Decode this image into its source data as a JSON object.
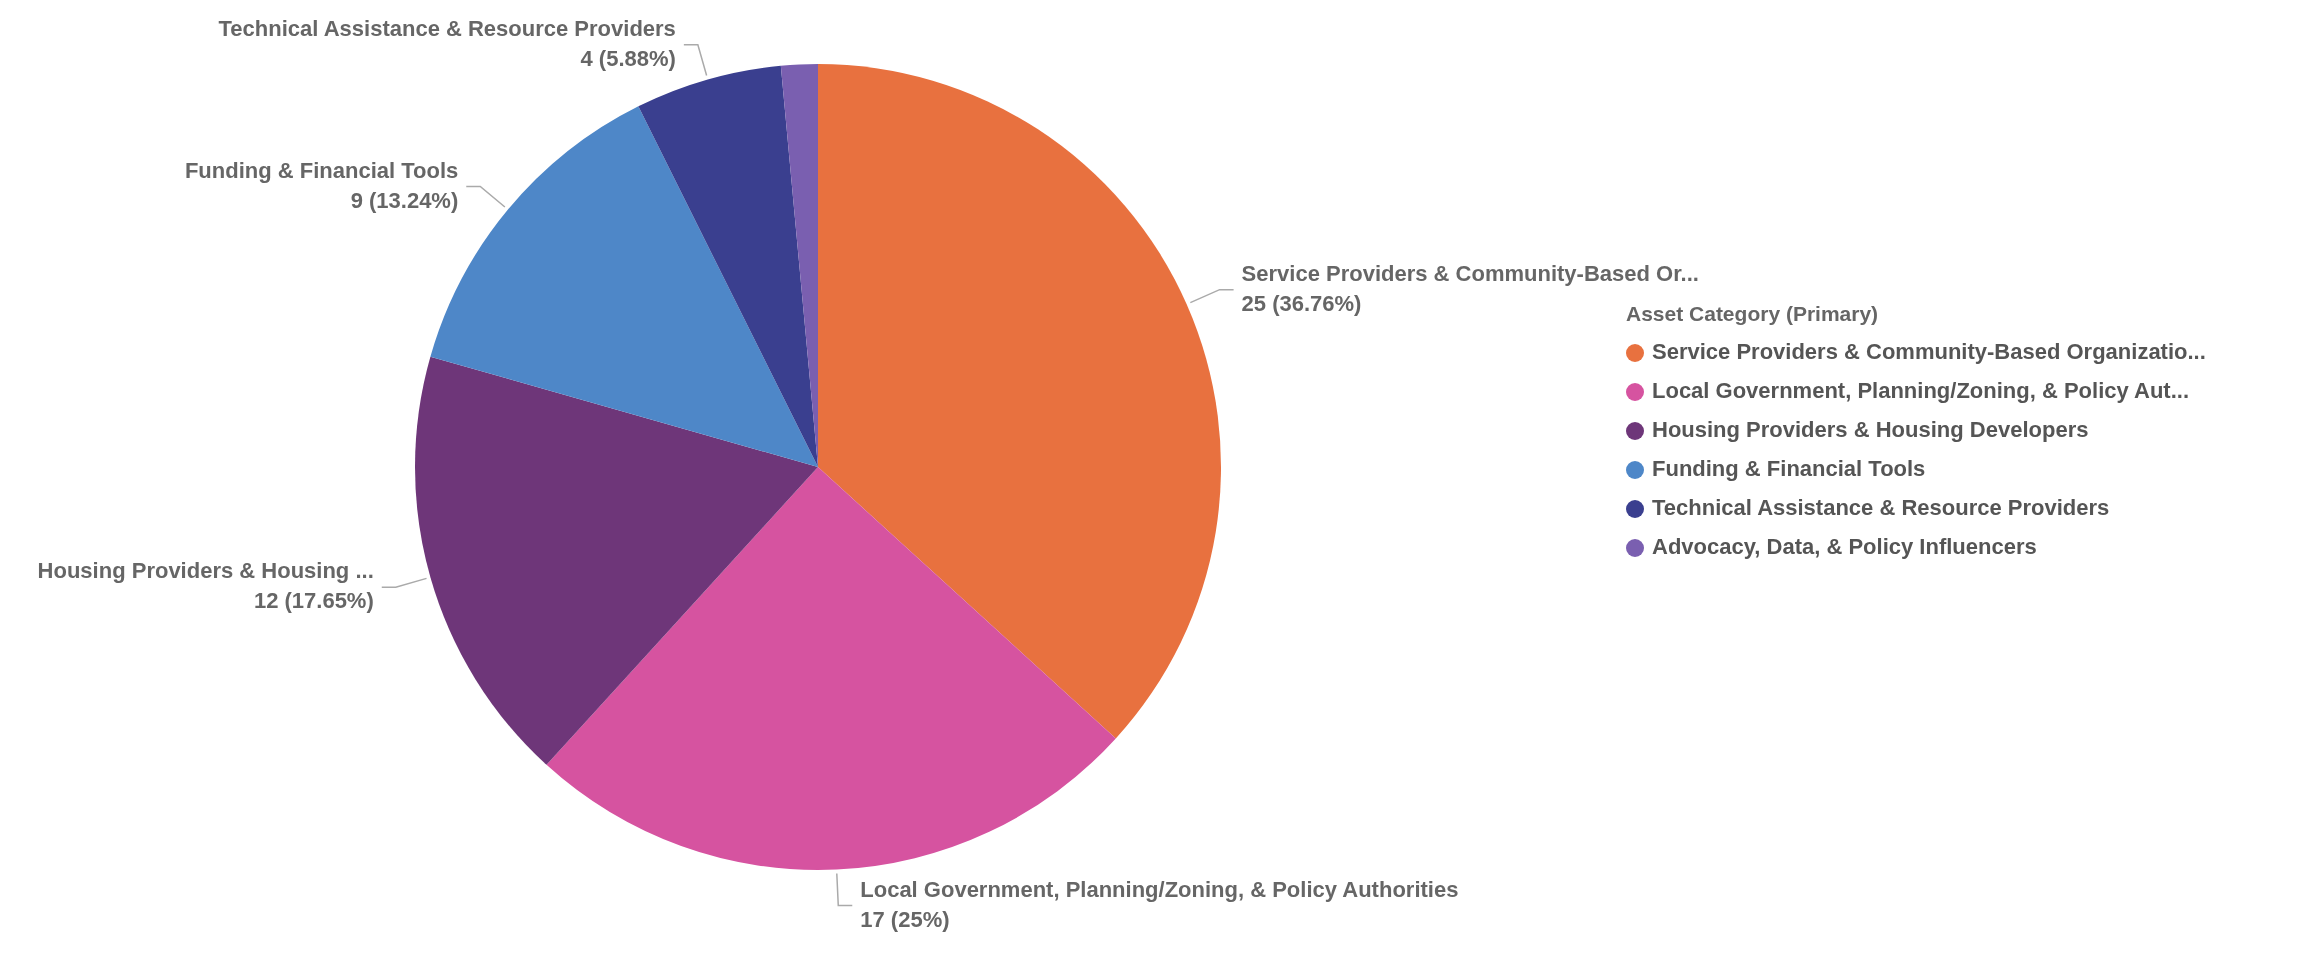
{
  "chart_data": {
    "type": "pie",
    "legend_title": "Asset Category (Primary)",
    "legend": "right",
    "categories": [
      "Service Providers & Community-Based Organizatio...",
      "Local Government, Planning/Zoning, & Policy Aut...",
      "Housing Providers & Housing Developers",
      "Funding & Financial Tools",
      "Technical Assistance & Resource Providers",
      "Advocacy, Data, & Policy Influencers"
    ],
    "values": [
      25,
      17,
      12,
      9,
      4,
      1
    ],
    "colors": [
      "#e8713f",
      "#d653a0",
      "#6e3679",
      "#4e87c8",
      "#3a3f8f",
      "#7a5fb0"
    ],
    "value_labels": [
      "Service Providers & Community-Based Or...\n25 (36.76%)",
      "Local Government, Planning/Zoning, & Policy Authorities\n17 (25%)",
      "Housing Providers & Housing ...\n12 (17.65%)",
      "Funding & Financial Tools\n9 (13.24%)",
      "Technical Assistance & Resource Providers\n4 (5.88%)",
      null
    ]
  }
}
